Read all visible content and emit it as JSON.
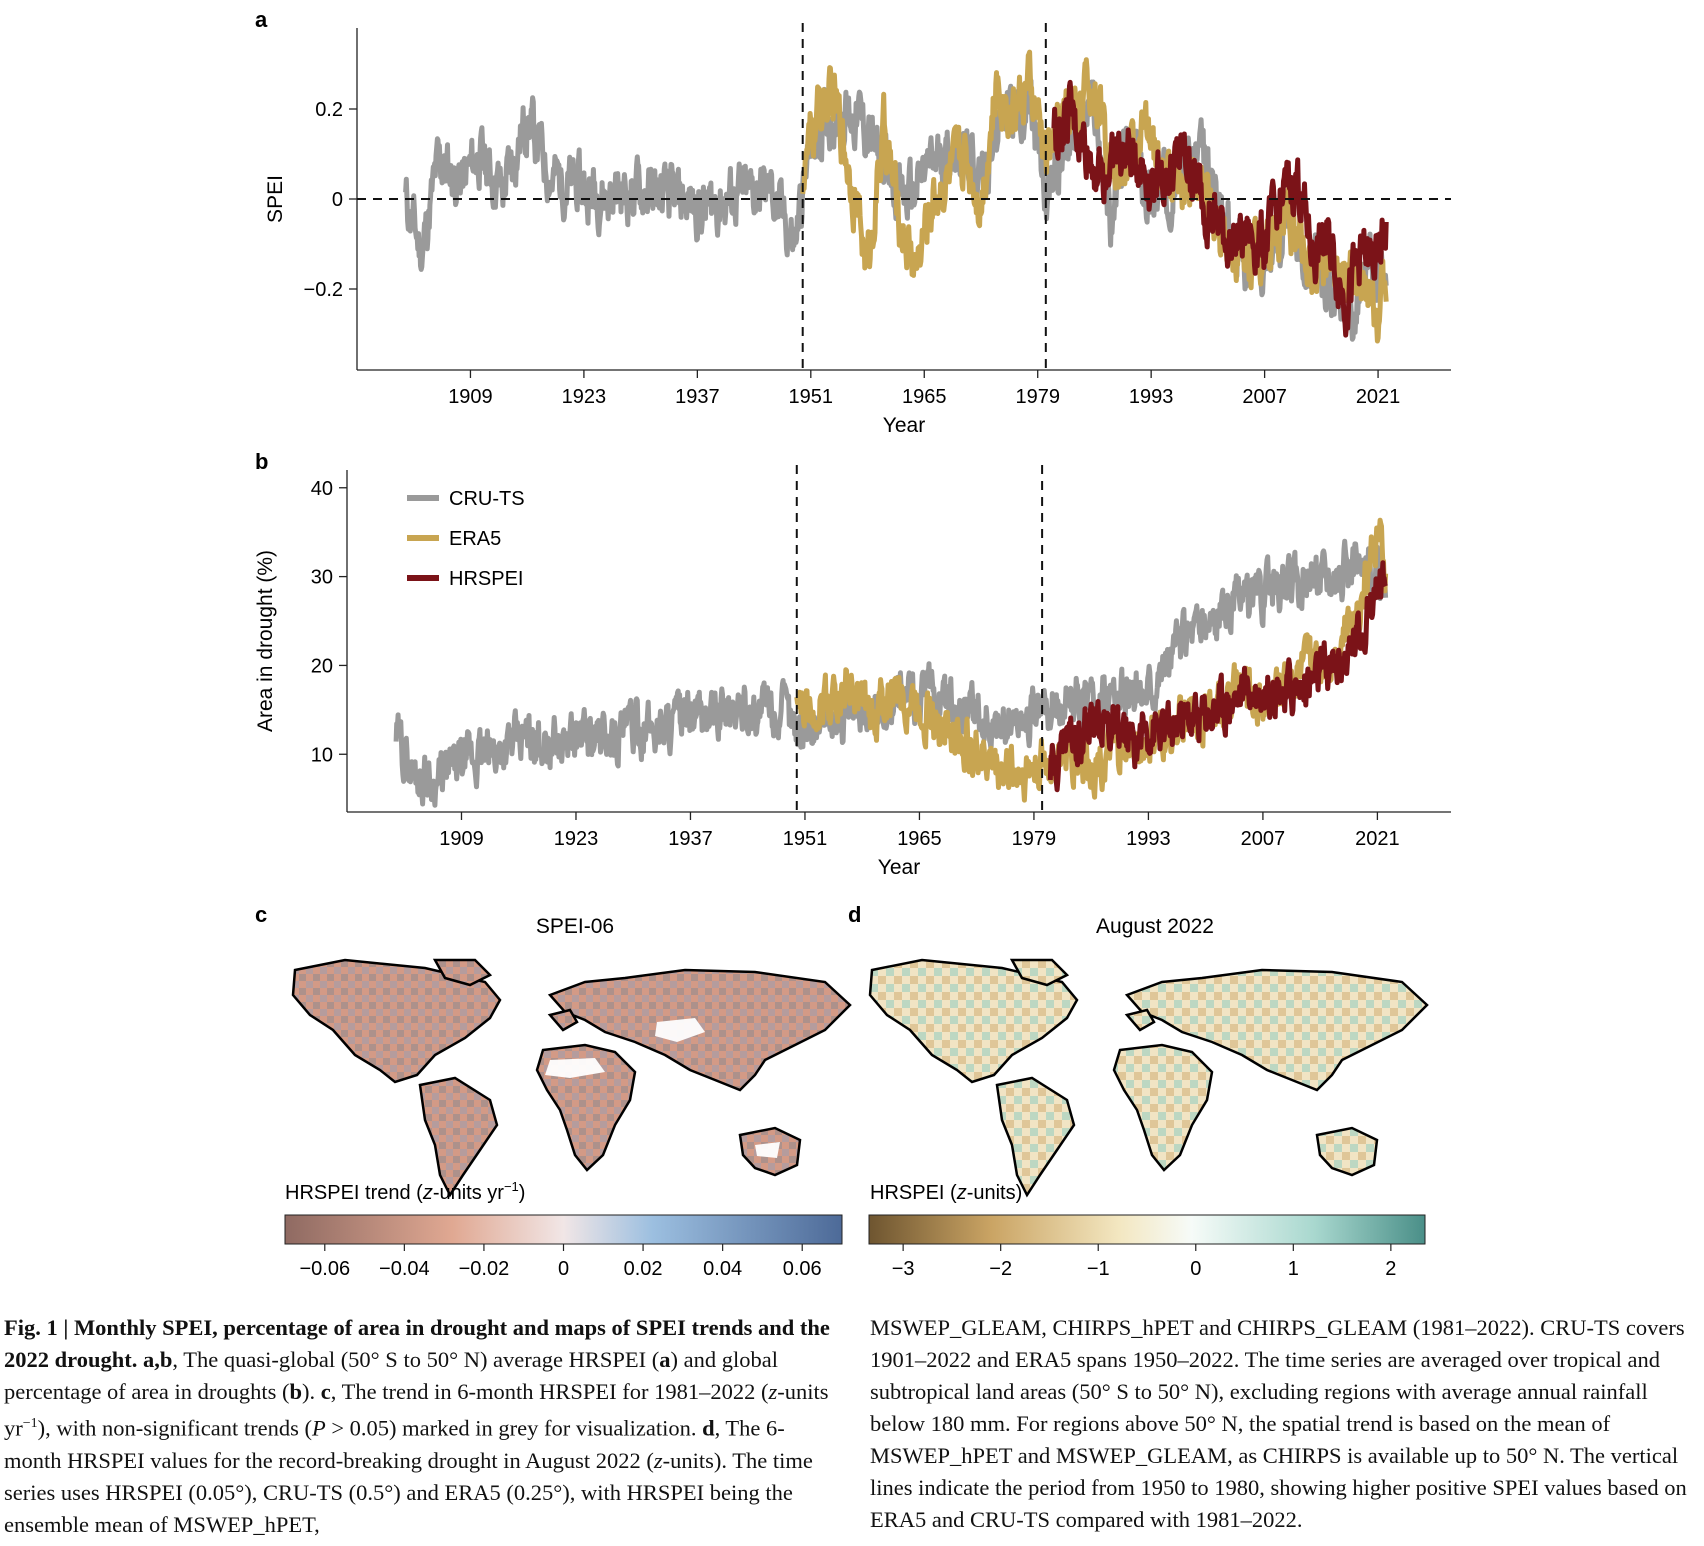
{
  "panel_labels": {
    "a": "a",
    "b": "b",
    "c": "c",
    "d": "d"
  },
  "chart_data": [
    {
      "type": "line",
      "panel": "a",
      "xlabel": "Year",
      "ylabel": "SPEI",
      "xticks": [
        1909,
        1923,
        1937,
        1951,
        1965,
        1979,
        1993,
        2007,
        2021
      ],
      "yticks": [
        -0.2,
        0,
        0.2
      ],
      "yticklabels": [
        "−0.2",
        "0",
        "0.2"
      ],
      "xlim": [
        1895,
        2030
      ],
      "ylim": [
        -0.38,
        0.38
      ],
      "vlines": [
        1950,
        1980
      ],
      "hline": 0,
      "series": [
        {
          "name": "CRU-TS",
          "color": "#9a9a9a",
          "x_range": [
            1901,
            2022
          ],
          "keypoints": [
            [
              1901,
              0.0
            ],
            [
              1903,
              -0.12
            ],
            [
              1905,
              0.08
            ],
            [
              1908,
              0.04
            ],
            [
              1910,
              0.1
            ],
            [
              1913,
              0.02
            ],
            [
              1916,
              0.18
            ],
            [
              1919,
              0.05
            ],
            [
              1922,
              0.03
            ],
            [
              1926,
              0.01
            ],
            [
              1930,
              0.02
            ],
            [
              1934,
              0.0
            ],
            [
              1938,
              -0.02
            ],
            [
              1942,
              0.01
            ],
            [
              1946,
              0.02
            ],
            [
              1949,
              -0.1
            ],
            [
              1951,
              0.12
            ],
            [
              1954,
              0.2
            ],
            [
              1957,
              0.18
            ],
            [
              1960,
              0.08
            ],
            [
              1963,
              0.0
            ],
            [
              1966,
              0.08
            ],
            [
              1969,
              0.12
            ],
            [
              1972,
              0.05
            ],
            [
              1975,
              0.2
            ],
            [
              1978,
              0.2
            ],
            [
              1980,
              0.0
            ],
            [
              1983,
              0.15
            ],
            [
              1986,
              0.2
            ],
            [
              1988,
              -0.05
            ],
            [
              1990,
              0.12
            ],
            [
              1993,
              0.0
            ],
            [
              1996,
              0.05
            ],
            [
              1999,
              0.1
            ],
            [
              2002,
              -0.05
            ],
            [
              2005,
              -0.15
            ],
            [
              2008,
              -0.1
            ],
            [
              2010,
              -0.05
            ],
            [
              2013,
              -0.15
            ],
            [
              2016,
              -0.2
            ],
            [
              2018,
              -0.25
            ],
            [
              2020,
              -0.15
            ],
            [
              2022,
              -0.2
            ]
          ]
        },
        {
          "name": "ERA5",
          "color": "#c8a551",
          "x_range": [
            1950,
            2022
          ],
          "keypoints": [
            [
              1950,
              0.05
            ],
            [
              1952,
              0.2
            ],
            [
              1954,
              0.22
            ],
            [
              1956,
              0.05
            ],
            [
              1958,
              -0.15
            ],
            [
              1960,
              0.15
            ],
            [
              1962,
              -0.05
            ],
            [
              1964,
              -0.15
            ],
            [
              1966,
              0.0
            ],
            [
              1968,
              0.05
            ],
            [
              1970,
              0.1
            ],
            [
              1972,
              0.0
            ],
            [
              1974,
              0.25
            ],
            [
              1976,
              0.2
            ],
            [
              1978,
              0.25
            ],
            [
              1980,
              0.1
            ],
            [
              1983,
              0.2
            ],
            [
              1986,
              0.25
            ],
            [
              1989,
              0.05
            ],
            [
              1992,
              0.15
            ],
            [
              1995,
              0.05
            ],
            [
              1998,
              0.05
            ],
            [
              2001,
              -0.05
            ],
            [
              2004,
              -0.12
            ],
            [
              2007,
              -0.1
            ],
            [
              2010,
              -0.05
            ],
            [
              2013,
              -0.15
            ],
            [
              2016,
              -0.18
            ],
            [
              2019,
              -0.2
            ],
            [
              2021,
              -0.25
            ],
            [
              2022,
              -0.18
            ]
          ]
        },
        {
          "name": "HRSPEI",
          "color": "#7b1318",
          "x_range": [
            1981,
            2022
          ],
          "keypoints": [
            [
              1981,
              0.15
            ],
            [
              1983,
              0.18
            ],
            [
              1985,
              0.12
            ],
            [
              1987,
              0.05
            ],
            [
              1989,
              0.1
            ],
            [
              1991,
              0.1
            ],
            [
              1993,
              0.05
            ],
            [
              1995,
              0.05
            ],
            [
              1997,
              0.1
            ],
            [
              1999,
              0.02
            ],
            [
              2001,
              -0.05
            ],
            [
              2003,
              -0.1
            ],
            [
              2005,
              -0.08
            ],
            [
              2007,
              -0.1
            ],
            [
              2009,
              0.0
            ],
            [
              2011,
              0.05
            ],
            [
              2013,
              -0.12
            ],
            [
              2015,
              -0.1
            ],
            [
              2017,
              -0.22
            ],
            [
              2019,
              -0.12
            ],
            [
              2021,
              -0.15
            ],
            [
              2022,
              -0.05
            ]
          ]
        }
      ]
    },
    {
      "type": "line",
      "panel": "b",
      "xlabel": "Year",
      "ylabel": "Area in drought (%)",
      "xticks": [
        1909,
        1923,
        1937,
        1951,
        1965,
        1979,
        1993,
        2007,
        2021
      ],
      "yticks": [
        10,
        20,
        30,
        40
      ],
      "xlim": [
        1895,
        2030
      ],
      "ylim": [
        3.5,
        42
      ],
      "vlines": [
        1950,
        1980
      ],
      "legend": {
        "position": "top-left",
        "entries": [
          "CRU-TS",
          "ERA5",
          "HRSPEI"
        ]
      },
      "series": [
        {
          "name": "CRU-TS",
          "color": "#9a9a9a",
          "x_range": [
            1901,
            2022
          ],
          "keypoints": [
            [
              1901,
              12
            ],
            [
              1903,
              8
            ],
            [
              1906,
              7
            ],
            [
              1909,
              9
            ],
            [
              1912,
              10
            ],
            [
              1915,
              11
            ],
            [
              1918,
              12
            ],
            [
              1921,
              11
            ],
            [
              1924,
              12
            ],
            [
              1927,
              12
            ],
            [
              1930,
              13
            ],
            [
              1933,
              13
            ],
            [
              1936,
              14
            ],
            [
              1939,
              14
            ],
            [
              1942,
              15
            ],
            [
              1945,
              15
            ],
            [
              1948,
              15
            ],
            [
              1950,
              13
            ],
            [
              1953,
              14
            ],
            [
              1956,
              14
            ],
            [
              1959,
              15
            ],
            [
              1962,
              16
            ],
            [
              1965,
              17
            ],
            [
              1968,
              16
            ],
            [
              1971,
              15
            ],
            [
              1974,
              13
            ],
            [
              1977,
              14
            ],
            [
              1980,
              15
            ],
            [
              1983,
              16
            ],
            [
              1986,
              16
            ],
            [
              1989,
              17
            ],
            [
              1992,
              17
            ],
            [
              1995,
              20
            ],
            [
              1998,
              24
            ],
            [
              2001,
              25
            ],
            [
              2004,
              27
            ],
            [
              2007,
              28
            ],
            [
              2010,
              29
            ],
            [
              2013,
              30
            ],
            [
              2016,
              31
            ],
            [
              2019,
              31
            ],
            [
              2022,
              30
            ]
          ]
        },
        {
          "name": "ERA5",
          "color": "#c8a551",
          "x_range": [
            1950,
            2022
          ],
          "keypoints": [
            [
              1950,
              15
            ],
            [
              1953,
              16
            ],
            [
              1956,
              17
            ],
            [
              1959,
              14
            ],
            [
              1962,
              17
            ],
            [
              1965,
              16
            ],
            [
              1968,
              13
            ],
            [
              1971,
              11
            ],
            [
              1974,
              9
            ],
            [
              1977,
              8
            ],
            [
              1980,
              9
            ],
            [
              1983,
              10
            ],
            [
              1986,
              9
            ],
            [
              1989,
              10
            ],
            [
              1992,
              11
            ],
            [
              1995,
              12
            ],
            [
              1998,
              14
            ],
            [
              2001,
              15
            ],
            [
              2004,
              17
            ],
            [
              2007,
              16
            ],
            [
              2010,
              19
            ],
            [
              2013,
              20
            ],
            [
              2016,
              22
            ],
            [
              2019,
              28
            ],
            [
              2021,
              35
            ],
            [
              2022,
              30
            ]
          ]
        },
        {
          "name": "HRSPEI",
          "color": "#7b1318",
          "x_range": [
            1981,
            2022
          ],
          "keypoints": [
            [
              1981,
              8
            ],
            [
              1983,
              12
            ],
            [
              1985,
              13
            ],
            [
              1987,
              14
            ],
            [
              1989,
              12
            ],
            [
              1991,
              11
            ],
            [
              1993,
              13
            ],
            [
              1995,
              12
            ],
            [
              1997,
              14
            ],
            [
              1999,
              14
            ],
            [
              2001,
              15
            ],
            [
              2003,
              16
            ],
            [
              2005,
              17
            ],
            [
              2007,
              17
            ],
            [
              2009,
              18
            ],
            [
              2011,
              17
            ],
            [
              2013,
              18
            ],
            [
              2015,
              19
            ],
            [
              2017,
              21
            ],
            [
              2019,
              24
            ],
            [
              2021,
              29
            ],
            [
              2022,
              28
            ]
          ]
        }
      ]
    }
  ],
  "maps": {
    "c": {
      "title": "SPEI-06",
      "colorbar_label_pre": "HRSPEI trend (",
      "colorbar_label_italic": "z",
      "colorbar_label_post": "-units yr",
      "colorbar_label_sup": "−1",
      "colorbar_label_close": ")",
      "ticks": [
        "−0.06",
        "−0.04",
        "−0.02",
        "0",
        "0.02",
        "0.04",
        "0.06"
      ],
      "colors": [
        "#8f6a62",
        "#e0a892",
        "#f1e6e6",
        "#9cbfe0",
        "#4d6a98"
      ]
    },
    "d": {
      "title": "August 2022",
      "colorbar_label_pre": "HRSPEI (",
      "colorbar_label_italic": "z",
      "colorbar_label_post": "-units)",
      "ticks": [
        "−3",
        "−2",
        "−1",
        "0",
        "1",
        "2"
      ],
      "colors": [
        "#6e5530",
        "#caa464",
        "#f3e7c1",
        "#f6fbf8",
        "#a9d8cf",
        "#4a8f88"
      ]
    }
  },
  "caption": {
    "left": {
      "fig_label": "Fig. 1 | Monthly SPEI, percentage of area in drought and maps of SPEI trends and the 2022 drought. a",
      "fig_label_b": ",b",
      "t1": ", The quasi-global (50° S to 50° N) average HRSPEI (",
      "a": "a",
      "t2": ") and global percentage of area in droughts (",
      "b": "b",
      "t3": "). ",
      "c": "c",
      "t4": ", The trend in 6-month HRSPEI for 1981–2022 (",
      "z1": "z",
      "t5": "-units yr",
      "sup": "−1",
      "t6": "), with non-significant trends (",
      "P": "P",
      "t7": " > 0.05) marked in grey for visualization. ",
      "d": "d",
      "t8": ", The 6-month HRSPEI values for the record-breaking drought in August 2022 (",
      "z2": "z",
      "t9": "-units). The time series uses HRSPEI (0.05°), CRU-TS (0.5°) and ERA5 (0.25°), with HRSPEI being the ensemble mean of MSWEP_hPET,"
    },
    "right": "MSWEP_GLEAM, CHIRPS_hPET and CHIRPS_GLEAM (1981–2022). CRU-TS covers 1901–2022 and ERA5 spans 1950–2022. The time series are averaged over tropical and subtropical land areas (50° S to 50° N), excluding regions with average annual rainfall below 180 mm. For regions above 50° N, the spatial trend is based on the mean of MSWEP_hPET and MSWEP_GLEAM, as CHIRPS is available up to 50° N. The vertical lines indicate the period from 1950 to 1980, showing higher positive SPEI values based on ERA5 and CRU-TS compared with 1981–2022."
  }
}
